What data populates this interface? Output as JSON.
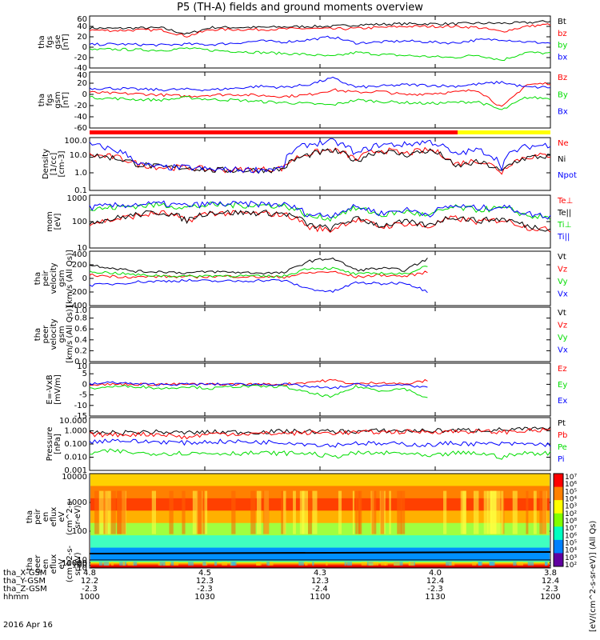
{
  "title": "P5 (TH-A) fields and ground moments overview",
  "date": "2016 Apr 16",
  "colors": {
    "black": "#000000",
    "red": "#ff0000",
    "green": "#00dd00",
    "blue": "#0000ff",
    "yellow": "#ffff00"
  },
  "chart_data": [
    {
      "type": "line",
      "id": "fgs-gse",
      "ylabel_lines": [
        "tha",
        "fgs",
        "gse",
        "[nT]"
      ],
      "yticks": [
        "60",
        "40",
        "20",
        "0",
        "-20",
        "-40"
      ],
      "ylim": [
        -40,
        60
      ],
      "series": [
        {
          "name": "Bt",
          "color": "#000000",
          "values": [
            37,
            36,
            37,
            37,
            25,
            38,
            38,
            38,
            39,
            40,
            40,
            43,
            44,
            45,
            45,
            45,
            46,
            46,
            47,
            50
          ]
        },
        {
          "name": "bz",
          "color": "#ff0000",
          "values": [
            33,
            32,
            33,
            33,
            21,
            34,
            34,
            34,
            35,
            36,
            35,
            36,
            38,
            40,
            40,
            40,
            38,
            30,
            40,
            44
          ]
        },
        {
          "name": "by",
          "color": "#00dd00",
          "values": [
            -5,
            -4,
            -5,
            -6,
            -2,
            -6,
            -8,
            -10,
            -12,
            -14,
            -18,
            -10,
            -14,
            -16,
            -18,
            -20,
            -15,
            -25,
            -10,
            -12
          ]
        },
        {
          "name": "bx",
          "color": "#0000ff",
          "values": [
            5,
            6,
            5,
            4,
            6,
            5,
            8,
            12,
            10,
            14,
            20,
            8,
            10,
            12,
            10,
            8,
            14,
            15,
            10,
            8
          ]
        }
      ]
    },
    {
      "type": "line",
      "id": "fgs-gsm",
      "ylabel_lines": [
        "tha",
        "fgs",
        "gsm",
        "[nT]"
      ],
      "yticks": [
        "40",
        "20",
        "0",
        "-20",
        "-40",
        "-60"
      ],
      "ylim": [
        -70,
        40
      ],
      "series": [
        {
          "name": "Bz",
          "color": "#ff0000",
          "values": [
            0,
            -2,
            -3,
            -5,
            -8,
            -5,
            -4,
            -6,
            -8,
            -5,
            5,
            0,
            2,
            -5,
            -2,
            0,
            5,
            -30,
            15,
            18
          ]
        },
        {
          "name": "By",
          "color": "#00dd00",
          "values": [
            -10,
            -12,
            -14,
            -15,
            -10,
            -14,
            -15,
            -18,
            -20,
            -22,
            -25,
            -15,
            -18,
            -20,
            -22,
            -20,
            -18,
            -35,
            -10,
            -12
          ]
        },
        {
          "name": "Bx",
          "color": "#0000ff",
          "values": [
            8,
            8,
            6,
            5,
            6,
            5,
            8,
            12,
            10,
            15,
            28,
            10,
            12,
            15,
            14,
            12,
            16,
            20,
            10,
            10
          ]
        }
      ]
    },
    {
      "type": "line",
      "id": "density",
      "log": true,
      "ylabel_lines": [
        "Density",
        "[1/cc]",
        "[cm-3]"
      ],
      "yticks": [
        "100.0",
        "10.0",
        "1.0",
        "0.1"
      ],
      "ylim": [
        0.1,
        100
      ],
      "series": [
        {
          "name": "Ne",
          "color": "#ff0000",
          "values": [
            10,
            8,
            3,
            2,
            2,
            1.5,
            1.5,
            1.5,
            1.8,
            12,
            20,
            5,
            20,
            12,
            20,
            3,
            5,
            1,
            8,
            10
          ]
        },
        {
          "name": "Ni",
          "color": "#000000",
          "values": [
            10,
            7,
            3,
            2,
            2,
            1.4,
            1.4,
            1.4,
            1.6,
            10,
            18,
            4,
            18,
            10,
            18,
            2,
            4,
            1,
            7,
            9
          ]
        },
        {
          "name": "Npot",
          "color": "#0000ff",
          "values": [
            40,
            20,
            3,
            2,
            2,
            1.5,
            1.5,
            1.5,
            1.8,
            40,
            60,
            10,
            40,
            40,
            60,
            10,
            20,
            2,
            30,
            40
          ]
        }
      ]
    },
    {
      "type": "line",
      "id": "temperature",
      "log": true,
      "ylabel_lines": [
        "mom",
        "[eV]"
      ],
      "yticks": [
        "1000",
        "100",
        "10"
      ],
      "ylim": [
        10,
        10000
      ],
      "series": [
        {
          "name": "Te⊥",
          "color": "#ff0000",
          "values": [
            250,
            400,
            700,
            1000,
            300,
            1000,
            900,
            900,
            800,
            150,
            100,
            400,
            150,
            250,
            150,
            500,
            300,
            400,
            150,
            100
          ]
        },
        {
          "name": "Te||",
          "color": "#000000",
          "values": [
            300,
            450,
            800,
            1100,
            350,
            1100,
            1000,
            1000,
            900,
            200,
            120,
            450,
            180,
            300,
            180,
            600,
            350,
            450,
            180,
            120
          ]
        },
        {
          "name": "Ti⊥",
          "color": "#00dd00",
          "values": [
            1500,
            2000,
            2500,
            2800,
            2000,
            2800,
            2700,
            2700,
            2500,
            600,
            500,
            1800,
            700,
            1200,
            600,
            2000,
            1500,
            1800,
            700,
            500
          ]
        },
        {
          "name": "Ti||",
          "color": "#0000ff",
          "values": [
            2000,
            2500,
            3000,
            3200,
            2500,
            3200,
            3100,
            3100,
            2900,
            800,
            700,
            2200,
            900,
            1500,
            800,
            2500,
            1800,
            2200,
            900,
            600
          ]
        }
      ]
    },
    {
      "type": "line",
      "id": "peir-velocity",
      "ylabel_lines": [
        "tha",
        "peir",
        "velocity",
        "gsm",
        "[km/s (All Qs)]"
      ],
      "yticks": [
        "400",
        "200",
        "0",
        "-200",
        "-400"
      ],
      "ylim": [
        -400,
        400
      ],
      "series": [
        {
          "name": "Vt",
          "color": "#000000",
          "values": [
            200,
            150,
            100,
            100,
            80,
            100,
            90,
            80,
            80,
            250,
            300,
            120,
            150,
            120,
            300,
            null,
            null,
            null,
            null,
            null
          ]
        },
        {
          "name": "Vz",
          "color": "#ff0000",
          "values": [
            50,
            30,
            20,
            30,
            20,
            30,
            30,
            20,
            20,
            80,
            100,
            20,
            50,
            30,
            100,
            null,
            null,
            null,
            null,
            null
          ]
        },
        {
          "name": "Vy",
          "color": "#00dd00",
          "values": [
            100,
            80,
            50,
            40,
            30,
            40,
            40,
            30,
            30,
            150,
            150,
            60,
            80,
            60,
            200,
            null,
            null,
            null,
            null,
            null
          ]
        },
        {
          "name": "Vx",
          "color": "#0000ff",
          "values": [
            -100,
            -80,
            -50,
            -40,
            -30,
            -40,
            -40,
            -30,
            -30,
            -150,
            -200,
            -60,
            -80,
            -60,
            -200,
            null,
            null,
            null,
            null,
            null
          ]
        }
      ]
    },
    {
      "type": "line",
      "id": "peer-velocity",
      "ylabel_lines": [
        "tha",
        "peer",
        "velocity",
        "gsm",
        "[km/s (All Qs)]"
      ],
      "yticks": [
        "1.0",
        "0.8",
        "0.6",
        "0.4",
        "0.2",
        "0.0"
      ],
      "ylim": [
        0,
        1
      ],
      "series": [
        {
          "name": "Vt",
          "color": "#000000",
          "values": []
        },
        {
          "name": "Vz",
          "color": "#ff0000",
          "values": []
        },
        {
          "name": "Vy",
          "color": "#00dd00",
          "values": []
        },
        {
          "name": "Vx",
          "color": "#0000ff",
          "values": []
        }
      ]
    },
    {
      "type": "line",
      "id": "efield",
      "ylabel_lines": [
        "E=-VxB",
        "[mV/m]"
      ],
      "yticks": [
        "10",
        "5",
        "0",
        "-5",
        "-10",
        "-15"
      ],
      "ylim": [
        -15,
        10
      ],
      "series": [
        {
          "name": "Ez",
          "color": "#ff0000",
          "values": [
            0,
            0,
            0,
            0,
            0,
            0,
            0,
            0,
            0,
            1,
            2,
            0,
            1,
            0,
            2,
            null,
            null,
            null,
            null,
            null
          ]
        },
        {
          "name": "Ey",
          "color": "#00dd00",
          "values": [
            -2,
            -1,
            -1,
            -2,
            -1,
            -2,
            -1,
            -1,
            -1,
            -4,
            -6,
            -1,
            -3,
            -2,
            -7,
            null,
            null,
            null,
            null,
            null
          ]
        },
        {
          "name": "Ex",
          "color": "#0000ff",
          "values": [
            0,
            1,
            0,
            0,
            0,
            0,
            0,
            0,
            0,
            -1,
            -2,
            0,
            -1,
            0,
            -2,
            null,
            null,
            null,
            null,
            null
          ]
        }
      ]
    },
    {
      "type": "line",
      "id": "pressure",
      "log": true,
      "ylabel_lines": [
        "Pressure",
        "[nPa]"
      ],
      "yticks": [
        "10.000",
        "1.000",
        "0.100",
        "0.010",
        "0.001"
      ],
      "ylim": [
        0.001,
        10
      ],
      "series": [
        {
          "name": "Pt",
          "color": "#000000",
          "values": [
            0.7,
            0.7,
            0.8,
            0.8,
            0.7,
            0.8,
            0.8,
            0.8,
            0.9,
            0.9,
            0.9,
            0.9,
            1.0,
            1.0,
            1.0,
            1.1,
            1.1,
            1.2,
            1.3,
            1.4
          ]
        },
        {
          "name": "Pb",
          "color": "#ff0000",
          "values": [
            0.5,
            0.5,
            0.55,
            0.55,
            0.3,
            0.6,
            0.6,
            0.6,
            0.65,
            0.7,
            0.7,
            0.75,
            0.8,
            0.85,
            0.85,
            0.9,
            0.9,
            0.8,
            1.0,
            1.1
          ]
        },
        {
          "name": "Pe",
          "color": "#00dd00",
          "values": [
            0.02,
            0.03,
            0.02,
            0.02,
            0.02,
            0.02,
            0.02,
            0.02,
            0.02,
            0.02,
            0.01,
            0.02,
            0.02,
            0.02,
            0.01,
            0.02,
            0.02,
            0.01,
            0.02,
            0.02
          ]
        },
        {
          "name": "Pi",
          "color": "#0000ff",
          "values": [
            0.15,
            0.2,
            0.15,
            0.15,
            0.12,
            0.15,
            0.15,
            0.14,
            0.14,
            0.1,
            0.08,
            0.12,
            0.1,
            0.1,
            0.08,
            0.12,
            0.1,
            0.1,
            0.1,
            0.09
          ]
        }
      ]
    },
    {
      "type": "heatmap",
      "id": "peir-eflux",
      "ylabel_lines": [
        "tha",
        "peir",
        "en",
        "eflux",
        "eV",
        "(cm^2-s-",
        "sr-eV)"
      ],
      "yticks": [
        "10000",
        "1000",
        "100",
        "10"
      ]
    },
    {
      "type": "heatmap",
      "id": "peer-eflux",
      "ylabel_lines": [
        "tha",
        "peer",
        "en",
        "eflux",
        "eV",
        "(cm^2-s-",
        "sr-eV)"
      ],
      "yticks": [
        "10000",
        "1000",
        "100",
        "10"
      ]
    }
  ],
  "colorbar": {
    "labels": [
      "10⁷",
      "10⁶",
      "10⁵",
      "10⁴",
      "10³",
      "10²",
      "10⁸",
      "10⁷",
      "10⁶",
      "10⁵",
      "10⁴",
      "10³",
      "10²"
    ],
    "title": "[eV/(cm^2-s-sr-eV)] (All Qs)"
  },
  "xaxis": {
    "rows": [
      {
        "label": "tha_X-GSM",
        "values": [
          "4.8",
          "4.5",
          "4.3",
          "4.0",
          "3.8"
        ]
      },
      {
        "label": "tha_Y-GSM",
        "values": [
          "12.2",
          "12.3",
          "12.3",
          "12.4",
          "12.4"
        ]
      },
      {
        "label": "tha_Z-GSM",
        "values": [
          "-2.3",
          "-2.3",
          "-2.4",
          "-2.3",
          "-2.3"
        ]
      },
      {
        "label": "hhmm",
        "values": [
          "1000",
          "1030",
          "1100",
          "1130",
          "1200"
        ]
      }
    ]
  }
}
